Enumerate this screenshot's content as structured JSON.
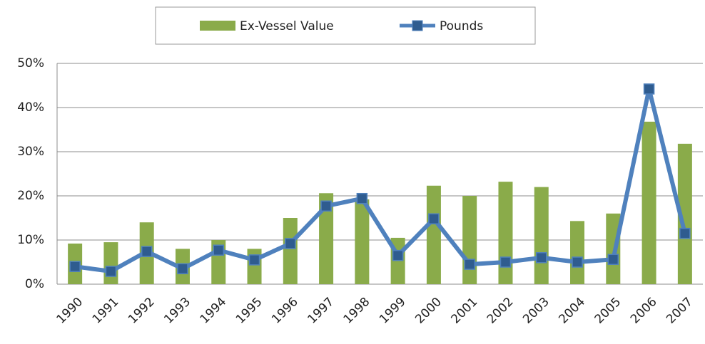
{
  "chart_data": {
    "type": "bar_line",
    "categories": [
      "1990",
      "1991",
      "1992",
      "1993",
      "1994",
      "1995",
      "1996",
      "1997",
      "1998",
      "1999",
      "2000",
      "2001",
      "2002",
      "2003",
      "2004",
      "2005",
      "2006",
      "2007"
    ],
    "series": [
      {
        "name": "Ex-Vessel Value",
        "type": "bar",
        "color": "#8aab4a",
        "values": [
          9.2,
          9.5,
          14,
          8,
          10,
          8,
          15,
          20.6,
          19.2,
          10.5,
          22.3,
          20,
          23.2,
          22,
          14.3,
          16,
          36.8,
          31.8
        ]
      },
      {
        "name": "Pounds",
        "type": "line",
        "color": "#4f81bd",
        "marker_color": "#2f5c8f",
        "values": [
          4.0,
          2.9,
          7.4,
          3.5,
          7.7,
          5.5,
          9.2,
          17.7,
          19.4,
          6.5,
          14.8,
          4.5,
          5.0,
          6.0,
          5.0,
          5.6,
          44.2,
          11.5
        ]
      }
    ],
    "ylim": [
      0,
      50
    ],
    "yticks": [
      {
        "value": 0,
        "label": "0%"
      },
      {
        "value": 10,
        "label": "10%"
      },
      {
        "value": 20,
        "label": "20%"
      },
      {
        "value": 30,
        "label": "30%"
      },
      {
        "value": 40,
        "label": "40%"
      },
      {
        "value": 50,
        "label": "50%"
      }
    ],
    "grid": true,
    "legend": "top"
  }
}
